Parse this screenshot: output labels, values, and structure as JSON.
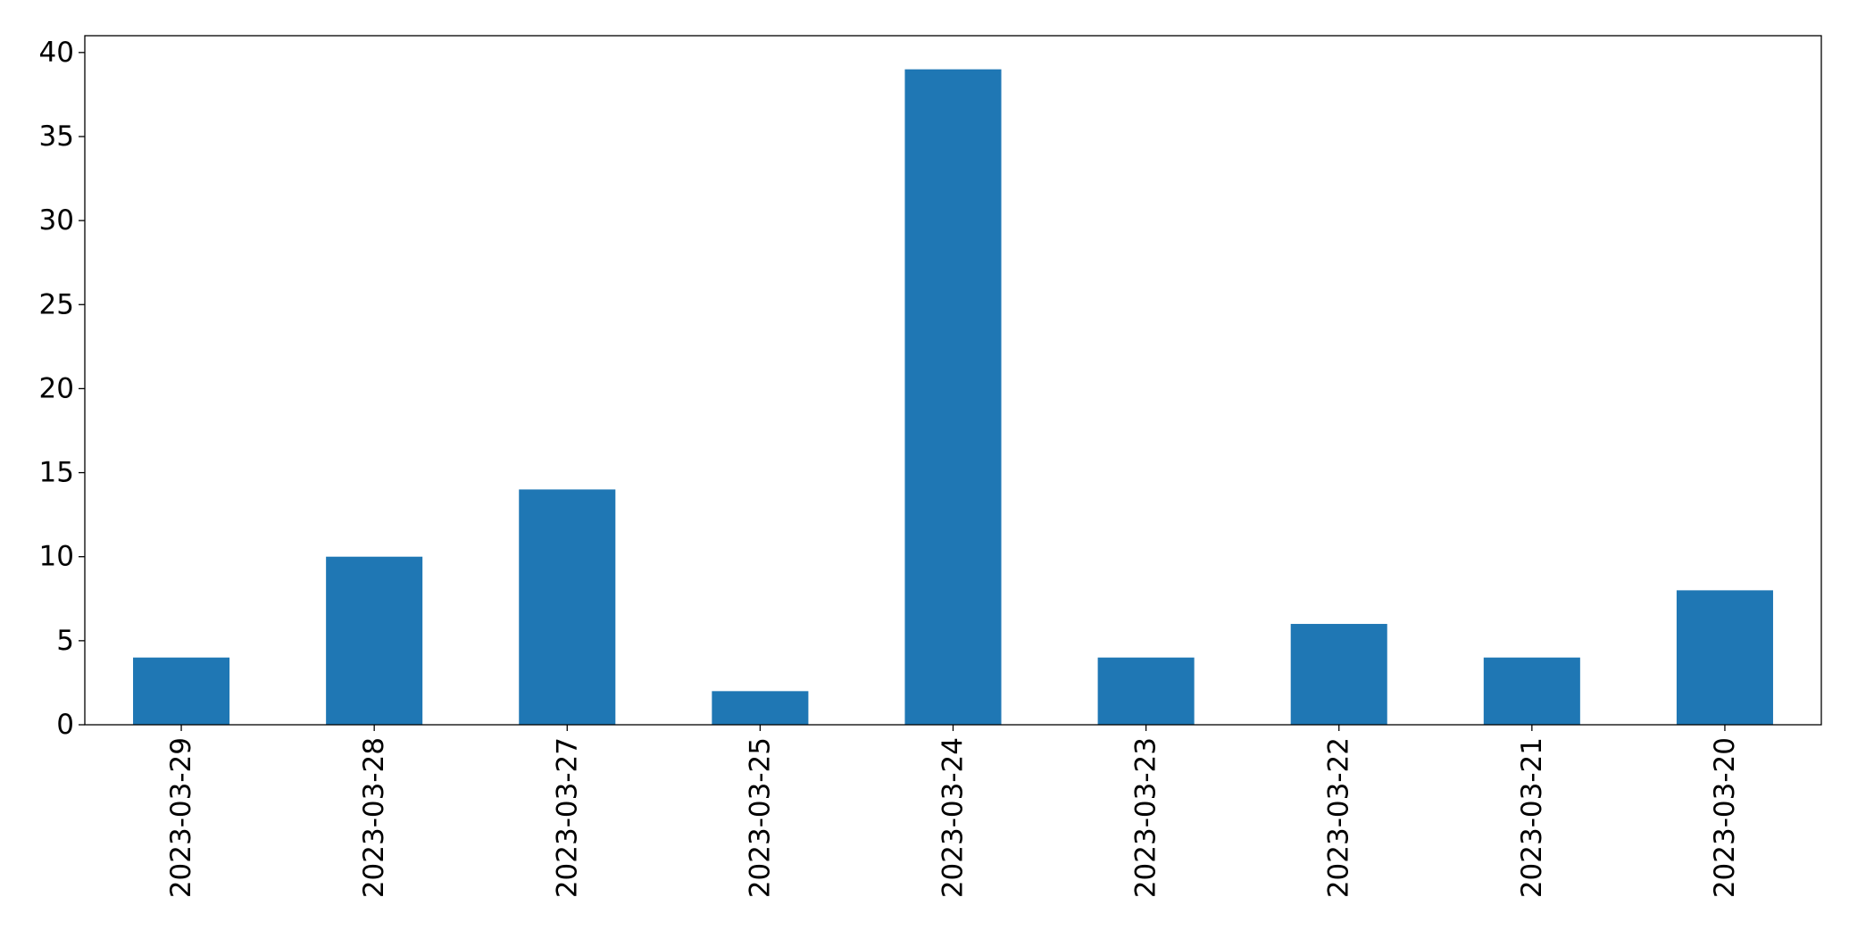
{
  "chart_data": {
    "type": "bar",
    "title": "",
    "xlabel": "",
    "ylabel": "",
    "categories": [
      "2023-03-29",
      "2023-03-28",
      "2023-03-27",
      "2023-03-25",
      "2023-03-24",
      "2023-03-23",
      "2023-03-22",
      "2023-03-21",
      "2023-03-20"
    ],
    "values": [
      4,
      10,
      14,
      2,
      39,
      4,
      6,
      4,
      8
    ],
    "ylim": [
      0,
      41
    ],
    "yticks": [
      0,
      5,
      10,
      15,
      20,
      25,
      30,
      35,
      40
    ],
    "grid": false,
    "legend": false,
    "bar_color": "#1f77b4"
  }
}
